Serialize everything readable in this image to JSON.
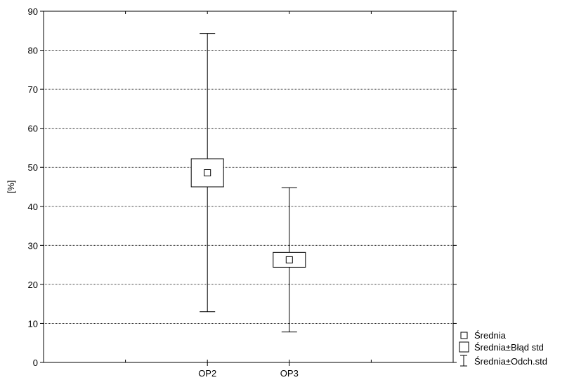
{
  "chart_data": {
    "type": "box",
    "title": "",
    "xlabel": "",
    "ylabel": "[%]",
    "ylim": [
      0,
      90
    ],
    "yticks": [
      0,
      10,
      20,
      30,
      40,
      50,
      60,
      70,
      80,
      90
    ],
    "grid": "horizontal-dotted",
    "categories": [
      "OP2",
      "OP3"
    ],
    "series": [
      {
        "category": "OP2",
        "mean": 48.6,
        "se_low": 45.0,
        "se_high": 52.2,
        "sd_low": 13.0,
        "sd_high": 84.3
      },
      {
        "category": "OP3",
        "mean": 26.3,
        "se_low": 24.4,
        "se_high": 28.2,
        "sd_low": 7.8,
        "sd_high": 44.8
      }
    ],
    "legend": {
      "placement": "bottom-right",
      "items": [
        "Średnia",
        "Średnia±Błąd std",
        "Średnia±Odch.std"
      ]
    },
    "colors": {
      "stroke": "#000000",
      "background": "#ffffff"
    }
  }
}
